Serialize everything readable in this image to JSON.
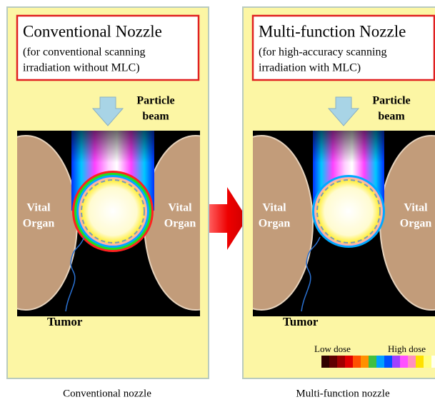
{
  "panels": [
    {
      "title": "Conventional Nozzle",
      "subtitle": [
        "(for conventional scanning",
        "irradiation without MLC)"
      ],
      "beam_label": [
        "Particle",
        "beam"
      ],
      "organ_left": [
        "Vital",
        "Organ"
      ],
      "organ_right": [
        "Vital",
        "Organ"
      ],
      "tumor": "Tumor",
      "caption": "Conventional nozzle"
    },
    {
      "title": "Multi-function Nozzle",
      "subtitle": [
        "(for high-accuracy scanning",
        "irradiation with MLC)"
      ],
      "beam_label": [
        "Particle",
        "beam"
      ],
      "organ_left": [
        "Vital",
        "Organ"
      ],
      "organ_right": [
        "Vital",
        "Organ"
      ],
      "tumor": "Tumor",
      "caption": "Multi-function nozzle"
    }
  ],
  "legend": {
    "low": "Low dose",
    "high": "High dose"
  }
}
